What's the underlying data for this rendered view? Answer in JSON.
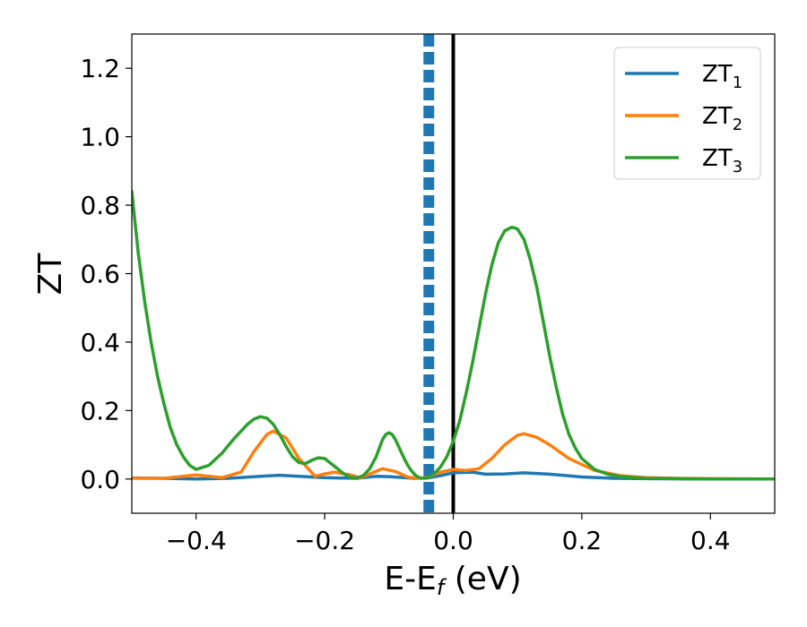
{
  "chart_data": {
    "type": "line",
    "xlabel": {
      "main": "E-E",
      "sub": "f",
      "unit": " (eV)"
    },
    "ylabel": "ZT",
    "xlim": [
      -0.5,
      0.5
    ],
    "ylim": [
      -0.1,
      1.3
    ],
    "x_ticks": [
      {
        "value": -0.4,
        "label": "−0.4"
      },
      {
        "value": -0.2,
        "label": "−0.2"
      },
      {
        "value": 0.0,
        "label": "0.0"
      },
      {
        "value": 0.2,
        "label": "0.2"
      },
      {
        "value": 0.4,
        "label": "0.4"
      }
    ],
    "y_ticks": [
      {
        "value": 0.0,
        "label": "0.0"
      },
      {
        "value": 0.2,
        "label": "0.2"
      },
      {
        "value": 0.4,
        "label": "0.4"
      },
      {
        "value": 0.6,
        "label": "0.6"
      },
      {
        "value": 0.8,
        "label": "0.8"
      },
      {
        "value": 1.0,
        "label": "1.0"
      },
      {
        "value": 1.2,
        "label": "1.2"
      }
    ],
    "grid": false,
    "legend_position": "top-right",
    "reference_lines": [
      {
        "x": -0.038,
        "style": "dashed",
        "color": "#1f77b4"
      },
      {
        "x": 0.0,
        "style": "solid",
        "color": "#000000"
      }
    ],
    "series": [
      {
        "name": "ZT",
        "sub": "1",
        "color": "#1f77b4",
        "x": [
          -0.5,
          -0.45,
          -0.4,
          -0.35,
          -0.3,
          -0.27,
          -0.22,
          -0.2,
          -0.15,
          -0.12,
          -0.1,
          -0.06,
          -0.04,
          -0.02,
          0.0,
          0.03,
          0.05,
          0.08,
          0.11,
          0.15,
          0.2,
          0.25,
          0.3,
          0.4,
          0.5
        ],
        "y": [
          0.003,
          0.002,
          0.0,
          0.002,
          0.008,
          0.011,
          0.006,
          0.004,
          0.002,
          0.008,
          0.007,
          0.002,
          0.003,
          0.01,
          0.018,
          0.02,
          0.014,
          0.015,
          0.018,
          0.014,
          0.006,
          0.002,
          0.001,
          0.0,
          0.0
        ]
      },
      {
        "name": "ZT",
        "sub": "2",
        "color": "#ff7f0e",
        "x": [
          -0.5,
          -0.45,
          -0.42,
          -0.4,
          -0.36,
          -0.33,
          -0.31,
          -0.29,
          -0.28,
          -0.26,
          -0.24,
          -0.215,
          -0.2,
          -0.185,
          -0.16,
          -0.145,
          -0.13,
          -0.11,
          -0.09,
          -0.07,
          -0.05,
          -0.04,
          -0.02,
          0.0,
          0.02,
          0.04,
          0.06,
          0.08,
          0.1,
          0.11,
          0.13,
          0.15,
          0.18,
          0.22,
          0.26,
          0.3,
          0.35,
          0.4,
          0.5
        ],
        "y": [
          0.002,
          0.002,
          0.008,
          0.012,
          0.004,
          0.02,
          0.08,
          0.13,
          0.14,
          0.12,
          0.06,
          0.008,
          0.015,
          0.02,
          0.012,
          0.003,
          0.015,
          0.03,
          0.022,
          0.005,
          0.002,
          0.005,
          0.02,
          0.028,
          0.025,
          0.03,
          0.06,
          0.1,
          0.128,
          0.132,
          0.122,
          0.1,
          0.06,
          0.025,
          0.01,
          0.004,
          0.002,
          0.001,
          0.0
        ]
      },
      {
        "name": "ZT",
        "sub": "3",
        "color": "#2ca02c",
        "x": [
          -0.5,
          -0.49,
          -0.48,
          -0.47,
          -0.46,
          -0.45,
          -0.44,
          -0.43,
          -0.42,
          -0.41,
          -0.4,
          -0.38,
          -0.36,
          -0.34,
          -0.32,
          -0.31,
          -0.3,
          -0.29,
          -0.28,
          -0.27,
          -0.26,
          -0.25,
          -0.24,
          -0.23,
          -0.22,
          -0.21,
          -0.2,
          -0.19,
          -0.18,
          -0.17,
          -0.16,
          -0.15,
          -0.14,
          -0.13,
          -0.12,
          -0.115,
          -0.11,
          -0.105,
          -0.1,
          -0.095,
          -0.09,
          -0.085,
          -0.08,
          -0.075,
          -0.07,
          -0.065,
          -0.06,
          -0.055,
          -0.05,
          -0.045,
          -0.04,
          -0.03,
          -0.02,
          -0.01,
          0.0,
          0.01,
          0.02,
          0.03,
          0.04,
          0.05,
          0.06,
          0.07,
          0.08,
          0.09,
          0.095,
          0.1,
          0.11,
          0.12,
          0.13,
          0.14,
          0.15,
          0.16,
          0.17,
          0.18,
          0.19,
          0.2,
          0.22,
          0.24,
          0.26,
          0.28,
          0.3,
          0.35,
          0.4,
          0.45,
          0.5
        ],
        "y": [
          0.84,
          0.66,
          0.52,
          0.4,
          0.3,
          0.22,
          0.15,
          0.1,
          0.065,
          0.04,
          0.028,
          0.04,
          0.075,
          0.12,
          0.16,
          0.175,
          0.182,
          0.178,
          0.16,
          0.13,
          0.095,
          0.065,
          0.048,
          0.045,
          0.055,
          0.062,
          0.06,
          0.045,
          0.03,
          0.015,
          0.005,
          0.003,
          0.01,
          0.03,
          0.065,
          0.09,
          0.115,
          0.13,
          0.135,
          0.13,
          0.115,
          0.095,
          0.075,
          0.055,
          0.038,
          0.024,
          0.013,
          0.006,
          0.003,
          0.002,
          0.004,
          0.015,
          0.035,
          0.065,
          0.11,
          0.17,
          0.25,
          0.34,
          0.44,
          0.54,
          0.625,
          0.69,
          0.725,
          0.735,
          0.734,
          0.73,
          0.7,
          0.64,
          0.56,
          0.46,
          0.36,
          0.27,
          0.19,
          0.13,
          0.09,
          0.06,
          0.028,
          0.014,
          0.007,
          0.004,
          0.002,
          0.001,
          0.0,
          0.0,
          0.0
        ]
      }
    ]
  }
}
